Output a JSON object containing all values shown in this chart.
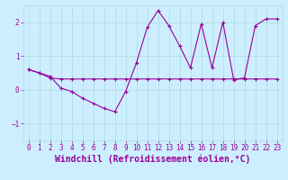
{
  "xlabel": "Windchill (Refroidissement éolien,°C)",
  "background_color": "#cceeff",
  "line_color": "#990099",
  "xlim": [
    -0.5,
    23.5
  ],
  "ylim": [
    -1.5,
    2.5
  ],
  "yticks": [
    -1,
    0,
    1,
    2
  ],
  "xticks": [
    0,
    1,
    2,
    3,
    4,
    5,
    6,
    7,
    8,
    9,
    10,
    11,
    12,
    13,
    14,
    15,
    16,
    17,
    18,
    19,
    20,
    21,
    22,
    23
  ],
  "series1_x": [
    0,
    1,
    2,
    3,
    4,
    5,
    6,
    7,
    8,
    9,
    10,
    11,
    12,
    13,
    14,
    15,
    16,
    17,
    18,
    19,
    20,
    21,
    22,
    23
  ],
  "series1_y": [
    0.6,
    0.5,
    0.4,
    0.05,
    -0.05,
    -0.25,
    -0.4,
    -0.55,
    -0.65,
    -0.05,
    0.8,
    1.85,
    2.35,
    1.9,
    1.3,
    0.65,
    1.95,
    0.65,
    2.0,
    0.3,
    0.35,
    1.9,
    2.1,
    2.1
  ],
  "series2_x": [
    0,
    1,
    2,
    3,
    4,
    5,
    6,
    7,
    8,
    9,
    10,
    11,
    12,
    13,
    14,
    15,
    16,
    17,
    18,
    19,
    20,
    21,
    22,
    23
  ],
  "series2_y": [
    0.6,
    0.5,
    0.35,
    0.32,
    0.32,
    0.32,
    0.32,
    0.32,
    0.32,
    0.32,
    0.32,
    0.32,
    0.32,
    0.32,
    0.32,
    0.32,
    0.32,
    0.32,
    0.32,
    0.32,
    0.32,
    0.32,
    0.32,
    0.32
  ],
  "grid_color": "#aadddd",
  "font_color": "#990099",
  "tick_label_fontsize": 5.5,
  "xlabel_fontsize": 7
}
